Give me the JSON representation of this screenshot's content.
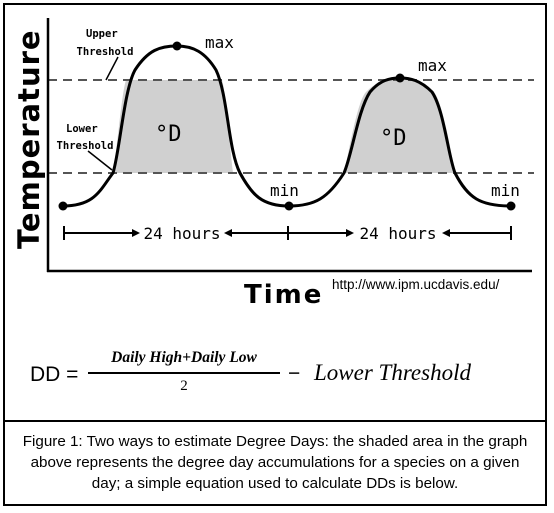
{
  "diagram": {
    "y_axis_label": "Temperature",
    "x_axis_label": "Time",
    "upper_threshold_label": [
      "Upper",
      "Threshold"
    ],
    "lower_threshold_label": [
      "Lower",
      "Threshold"
    ],
    "max_label": "max",
    "min_label": "min",
    "area_label": "°D",
    "interval_label": "24 hours",
    "source": "http://www.ipm.ucdavis.edu/"
  },
  "formula": {
    "lhs": "DD =",
    "numerator": "Daily High+Daily Low",
    "denominator": "2",
    "minus": "−",
    "term": "Lower Threshold"
  },
  "caption": "Figure 1: Two ways to estimate Degree Days: the shaded area in the graph above represents the degree day accumulations for a species on a given day; a simple equation used to calculate DDs is below."
}
